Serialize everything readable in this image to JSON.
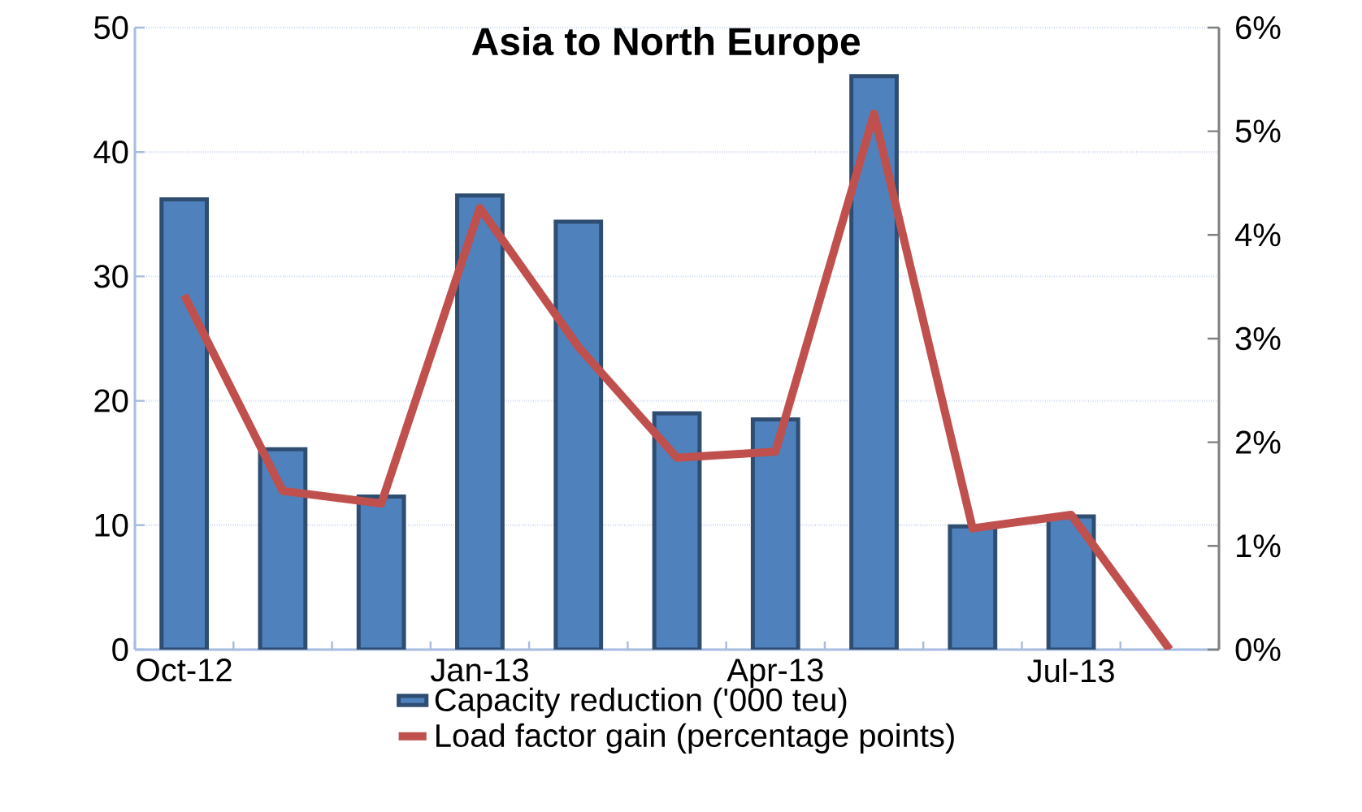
{
  "chart_data": {
    "type": "bar",
    "title": "Asia to North Europe",
    "categories": [
      "Oct-12",
      null,
      null,
      "Jan-13",
      null,
      null,
      "Apr-13",
      null,
      null,
      "Jul-13",
      null
    ],
    "series": [
      {
        "name": "Capacity reduction ('000 teu)",
        "color": "#4f81bd",
        "values": [
          36.2,
          16.1,
          12.3,
          36.5,
          34.4,
          19.0,
          18.5,
          46.1,
          9.9,
          10.7,
          null
        ]
      },
      {
        "name": "Load factor gain (percentage points)",
        "type": "line",
        "axis": "y2",
        "color": "#c0504d",
        "values": [
          3.42,
          1.53,
          1.41,
          4.26,
          2.92,
          1.85,
          1.91,
          5.17,
          1.17,
          1.3,
          0
        ]
      }
    ],
    "ylim": [
      0,
      50
    ],
    "yticks": [
      0,
      10,
      20,
      30,
      40,
      50
    ],
    "y2lim": [
      0,
      6
    ],
    "y2ticks": [
      {
        "value": 0,
        "label": "0%"
      },
      {
        "value": 1,
        "label": "1%"
      },
      {
        "value": 2,
        "label": "2%"
      },
      {
        "value": 3,
        "label": "3%"
      },
      {
        "value": 4,
        "label": "4%"
      },
      {
        "value": 5,
        "label": "5%"
      },
      {
        "value": 6,
        "label": "6%"
      }
    ],
    "grid": "y",
    "legend": "bottom",
    "marker": "none",
    "line_style": "solid"
  }
}
